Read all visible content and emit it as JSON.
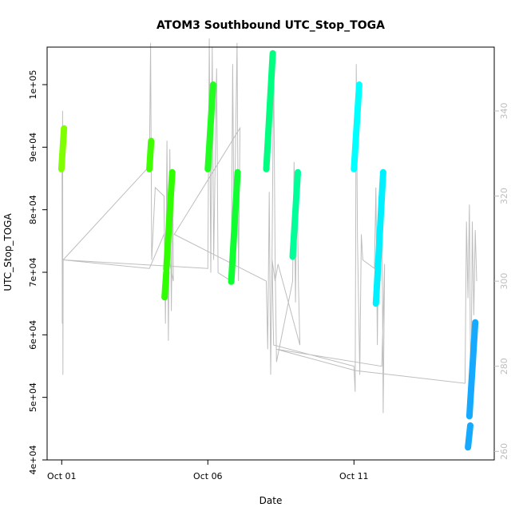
{
  "chart_data": {
    "type": "scatter",
    "title": "ATOM3 Southbound UTC_Stop_TOGA",
    "xlabel": "Date",
    "ylabel": "UTC_Stop_TOGA",
    "x_ticks": [
      {
        "value": 1.0,
        "label": "Oct 01"
      },
      {
        "value": 6.0,
        "label": "Oct 06"
      },
      {
        "value": 11.0,
        "label": "Oct 11"
      }
    ],
    "xlim": [
      0.5,
      15.8
    ],
    "ylim": [
      40000,
      106000
    ],
    "y_ticks": [
      {
        "value": 40000,
        "label": "4e+04"
      },
      {
        "value": 50000,
        "label": "5e+04"
      },
      {
        "value": 60000,
        "label": "6e+04"
      },
      {
        "value": 70000,
        "label": "7e+04"
      },
      {
        "value": 80000,
        "label": "8e+04"
      },
      {
        "value": 90000,
        "label": "9e+04"
      },
      {
        "value": 100000,
        "label": "1e+05"
      }
    ],
    "y2lim": [
      258,
      355
    ],
    "y2_ticks": [
      {
        "value": 260,
        "label": "260"
      },
      {
        "value": 280,
        "label": "280"
      },
      {
        "value": 300,
        "label": "300"
      },
      {
        "value": 320,
        "label": "320"
      },
      {
        "value": 340,
        "label": "340"
      }
    ],
    "grid": false,
    "colors": {
      "background_trace": "#bebebe",
      "axis": "#000000"
    },
    "series": [
      {
        "color": "#80ff00",
        "points": [
          [
            0.99,
            86500
          ],
          [
            1.08,
            93000
          ]
        ]
      },
      {
        "color": "#40ff00",
        "points": [
          [
            4.0,
            86500
          ],
          [
            4.06,
            91000
          ]
        ]
      },
      {
        "color": "#30ff00",
        "points": [
          [
            4.52,
            66000
          ],
          [
            4.58,
            70000
          ]
        ]
      },
      {
        "color": "#30ff00",
        "points": [
          [
            4.58,
            70500
          ],
          [
            4.78,
            86000
          ]
        ]
      },
      {
        "color": "#20ff20",
        "points": [
          [
            6.0,
            86500
          ],
          [
            6.18,
            100000
          ]
        ]
      },
      {
        "color": "#10ff30",
        "points": [
          [
            6.8,
            68500
          ],
          [
            7.02,
            86000
          ]
        ]
      },
      {
        "color": "#00ff80",
        "points": [
          [
            8.0,
            86500
          ],
          [
            8.22,
            105000
          ]
        ]
      },
      {
        "color": "#00ff99",
        "points": [
          [
            8.9,
            72500
          ],
          [
            9.08,
            86000
          ]
        ]
      },
      {
        "color": "#00ffff",
        "points": [
          [
            11.0,
            86500
          ],
          [
            11.18,
            100000
          ]
        ]
      },
      {
        "color": "#00f0ff",
        "points": [
          [
            11.75,
            65000
          ],
          [
            12.0,
            86000
          ]
        ]
      },
      {
        "color": "#15aaff",
        "points": [
          [
            14.9,
            42000
          ],
          [
            14.98,
            45500
          ]
        ]
      },
      {
        "color": "#15aaff",
        "points": [
          [
            14.95,
            47000
          ],
          [
            15.15,
            62000
          ]
        ]
      }
    ],
    "background_trace": [
      [
        1.01,
        330
      ],
      [
        1.02,
        290
      ],
      [
        1.03,
        340
      ],
      [
        1.04,
        278
      ],
      [
        1.05,
        305
      ],
      [
        4.0,
        327
      ],
      [
        4.04,
        356
      ],
      [
        4.08,
        305
      ],
      [
        4.2,
        322
      ],
      [
        4.5,
        320
      ],
      [
        4.55,
        290
      ],
      [
        4.6,
        333
      ],
      [
        4.65,
        286
      ],
      [
        4.7,
        331
      ],
      [
        4.75,
        293
      ],
      [
        4.8,
        325
      ],
      [
        4.82,
        300
      ],
      [
        4.5,
        311
      ],
      [
        4.0,
        303
      ],
      [
        1.05,
        305
      ],
      [
        6.0,
        303
      ],
      [
        6.05,
        357
      ],
      [
        6.1,
        302
      ],
      [
        6.15,
        355
      ],
      [
        6.2,
        305
      ],
      [
        6.3,
        350
      ],
      [
        6.35,
        302
      ],
      [
        6.8,
        300
      ],
      [
        6.85,
        351
      ],
      [
        6.9,
        309
      ],
      [
        7.0,
        356
      ],
      [
        7.05,
        300
      ],
      [
        7.1,
        336
      ],
      [
        4.85,
        311
      ],
      [
        8.0,
        300
      ],
      [
        8.05,
        284
      ],
      [
        8.1,
        321
      ],
      [
        8.15,
        278
      ],
      [
        8.2,
        307
      ],
      [
        8.25,
        352
      ],
      [
        8.3,
        306
      ],
      [
        8.35,
        281
      ],
      [
        8.9,
        300
      ],
      [
        8.95,
        328
      ],
      [
        9.0,
        295
      ],
      [
        9.05,
        326
      ],
      [
        9.1,
        299
      ],
      [
        9.15,
        285
      ],
      [
        8.4,
        304
      ],
      [
        8.3,
        300
      ],
      [
        8.2,
        305
      ],
      [
        8.25,
        285
      ],
      [
        11.0,
        280
      ],
      [
        11.04,
        274
      ],
      [
        11.08,
        351
      ],
      [
        11.12,
        310
      ],
      [
        11.2,
        278
      ],
      [
        11.25,
        311
      ],
      [
        11.3,
        305
      ],
      [
        11.7,
        303
      ],
      [
        11.75,
        322
      ],
      [
        11.8,
        285
      ],
      [
        11.85,
        320
      ],
      [
        11.9,
        300
      ],
      [
        11.95,
        326
      ],
      [
        12.0,
        269
      ],
      [
        12.05,
        304
      ],
      [
        11.95,
        280
      ],
      [
        8.35,
        284
      ],
      [
        11.05,
        279
      ],
      [
        14.8,
        276
      ],
      [
        14.85,
        314
      ],
      [
        14.9,
        296
      ],
      [
        14.95,
        318
      ],
      [
        15.0,
        268
      ],
      [
        15.05,
        314
      ],
      [
        15.1,
        292
      ],
      [
        15.15,
        312
      ],
      [
        15.2,
        300
      ]
    ]
  }
}
